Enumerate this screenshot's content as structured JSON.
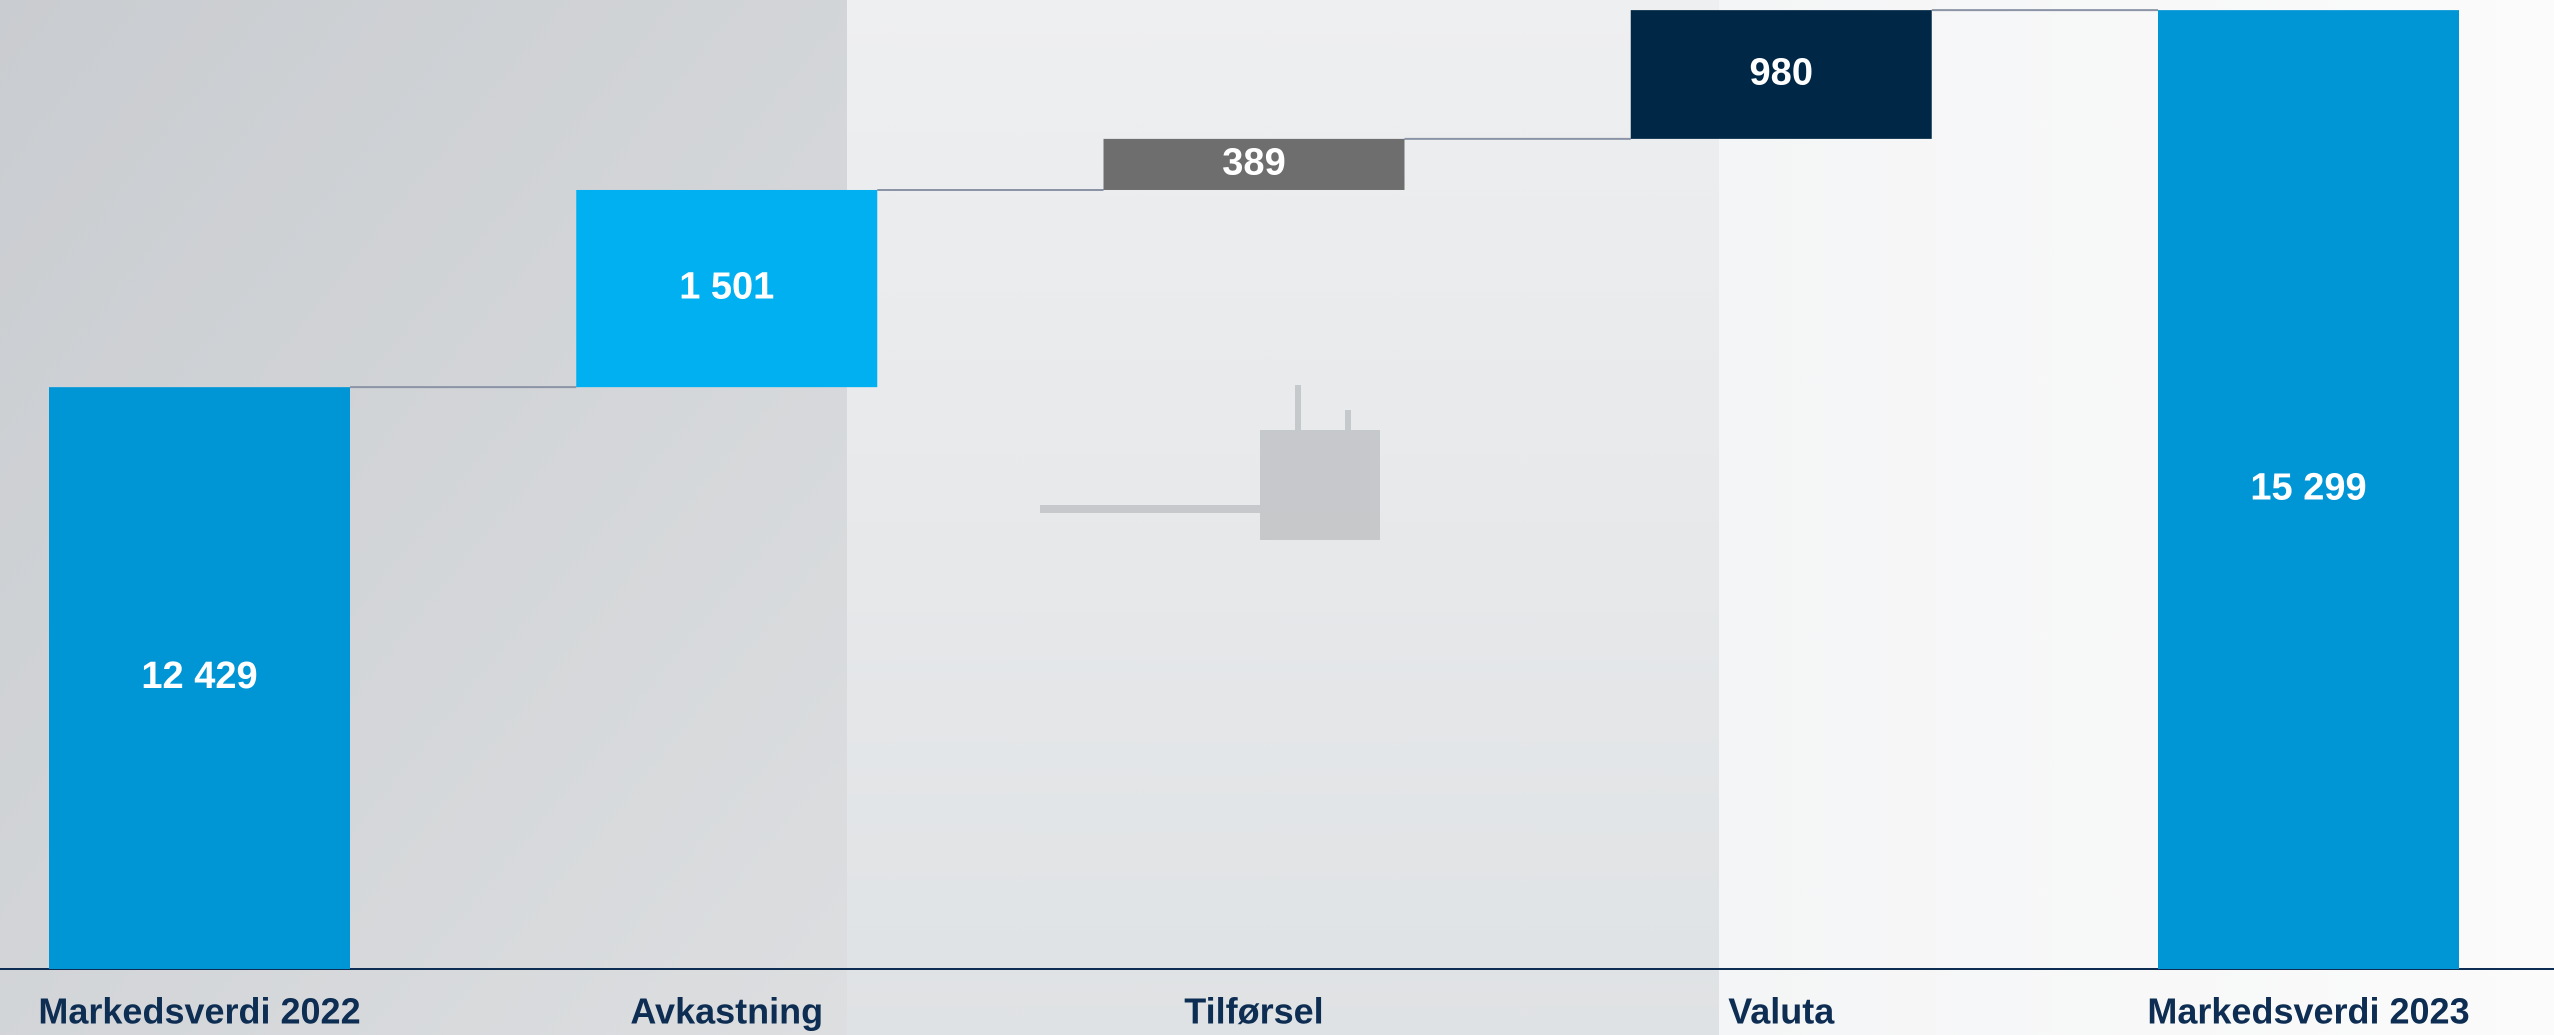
{
  "chart_data": {
    "type": "waterfall",
    "categories": [
      "Markedsverdi 2022",
      "Avkastning",
      "Tilførsel",
      "Valuta",
      "Markedsverdi 2023"
    ],
    "values": [
      12429,
      1501,
      389,
      980,
      15299
    ],
    "value_labels": [
      "12 429",
      "1 501",
      "389",
      "980",
      "15 299"
    ],
    "colors": [
      "#0096d6",
      "#00b0f0",
      "#6e6e6e",
      "#002846",
      "#0096d6"
    ],
    "ylim": [
      8000,
      15300
    ]
  }
}
